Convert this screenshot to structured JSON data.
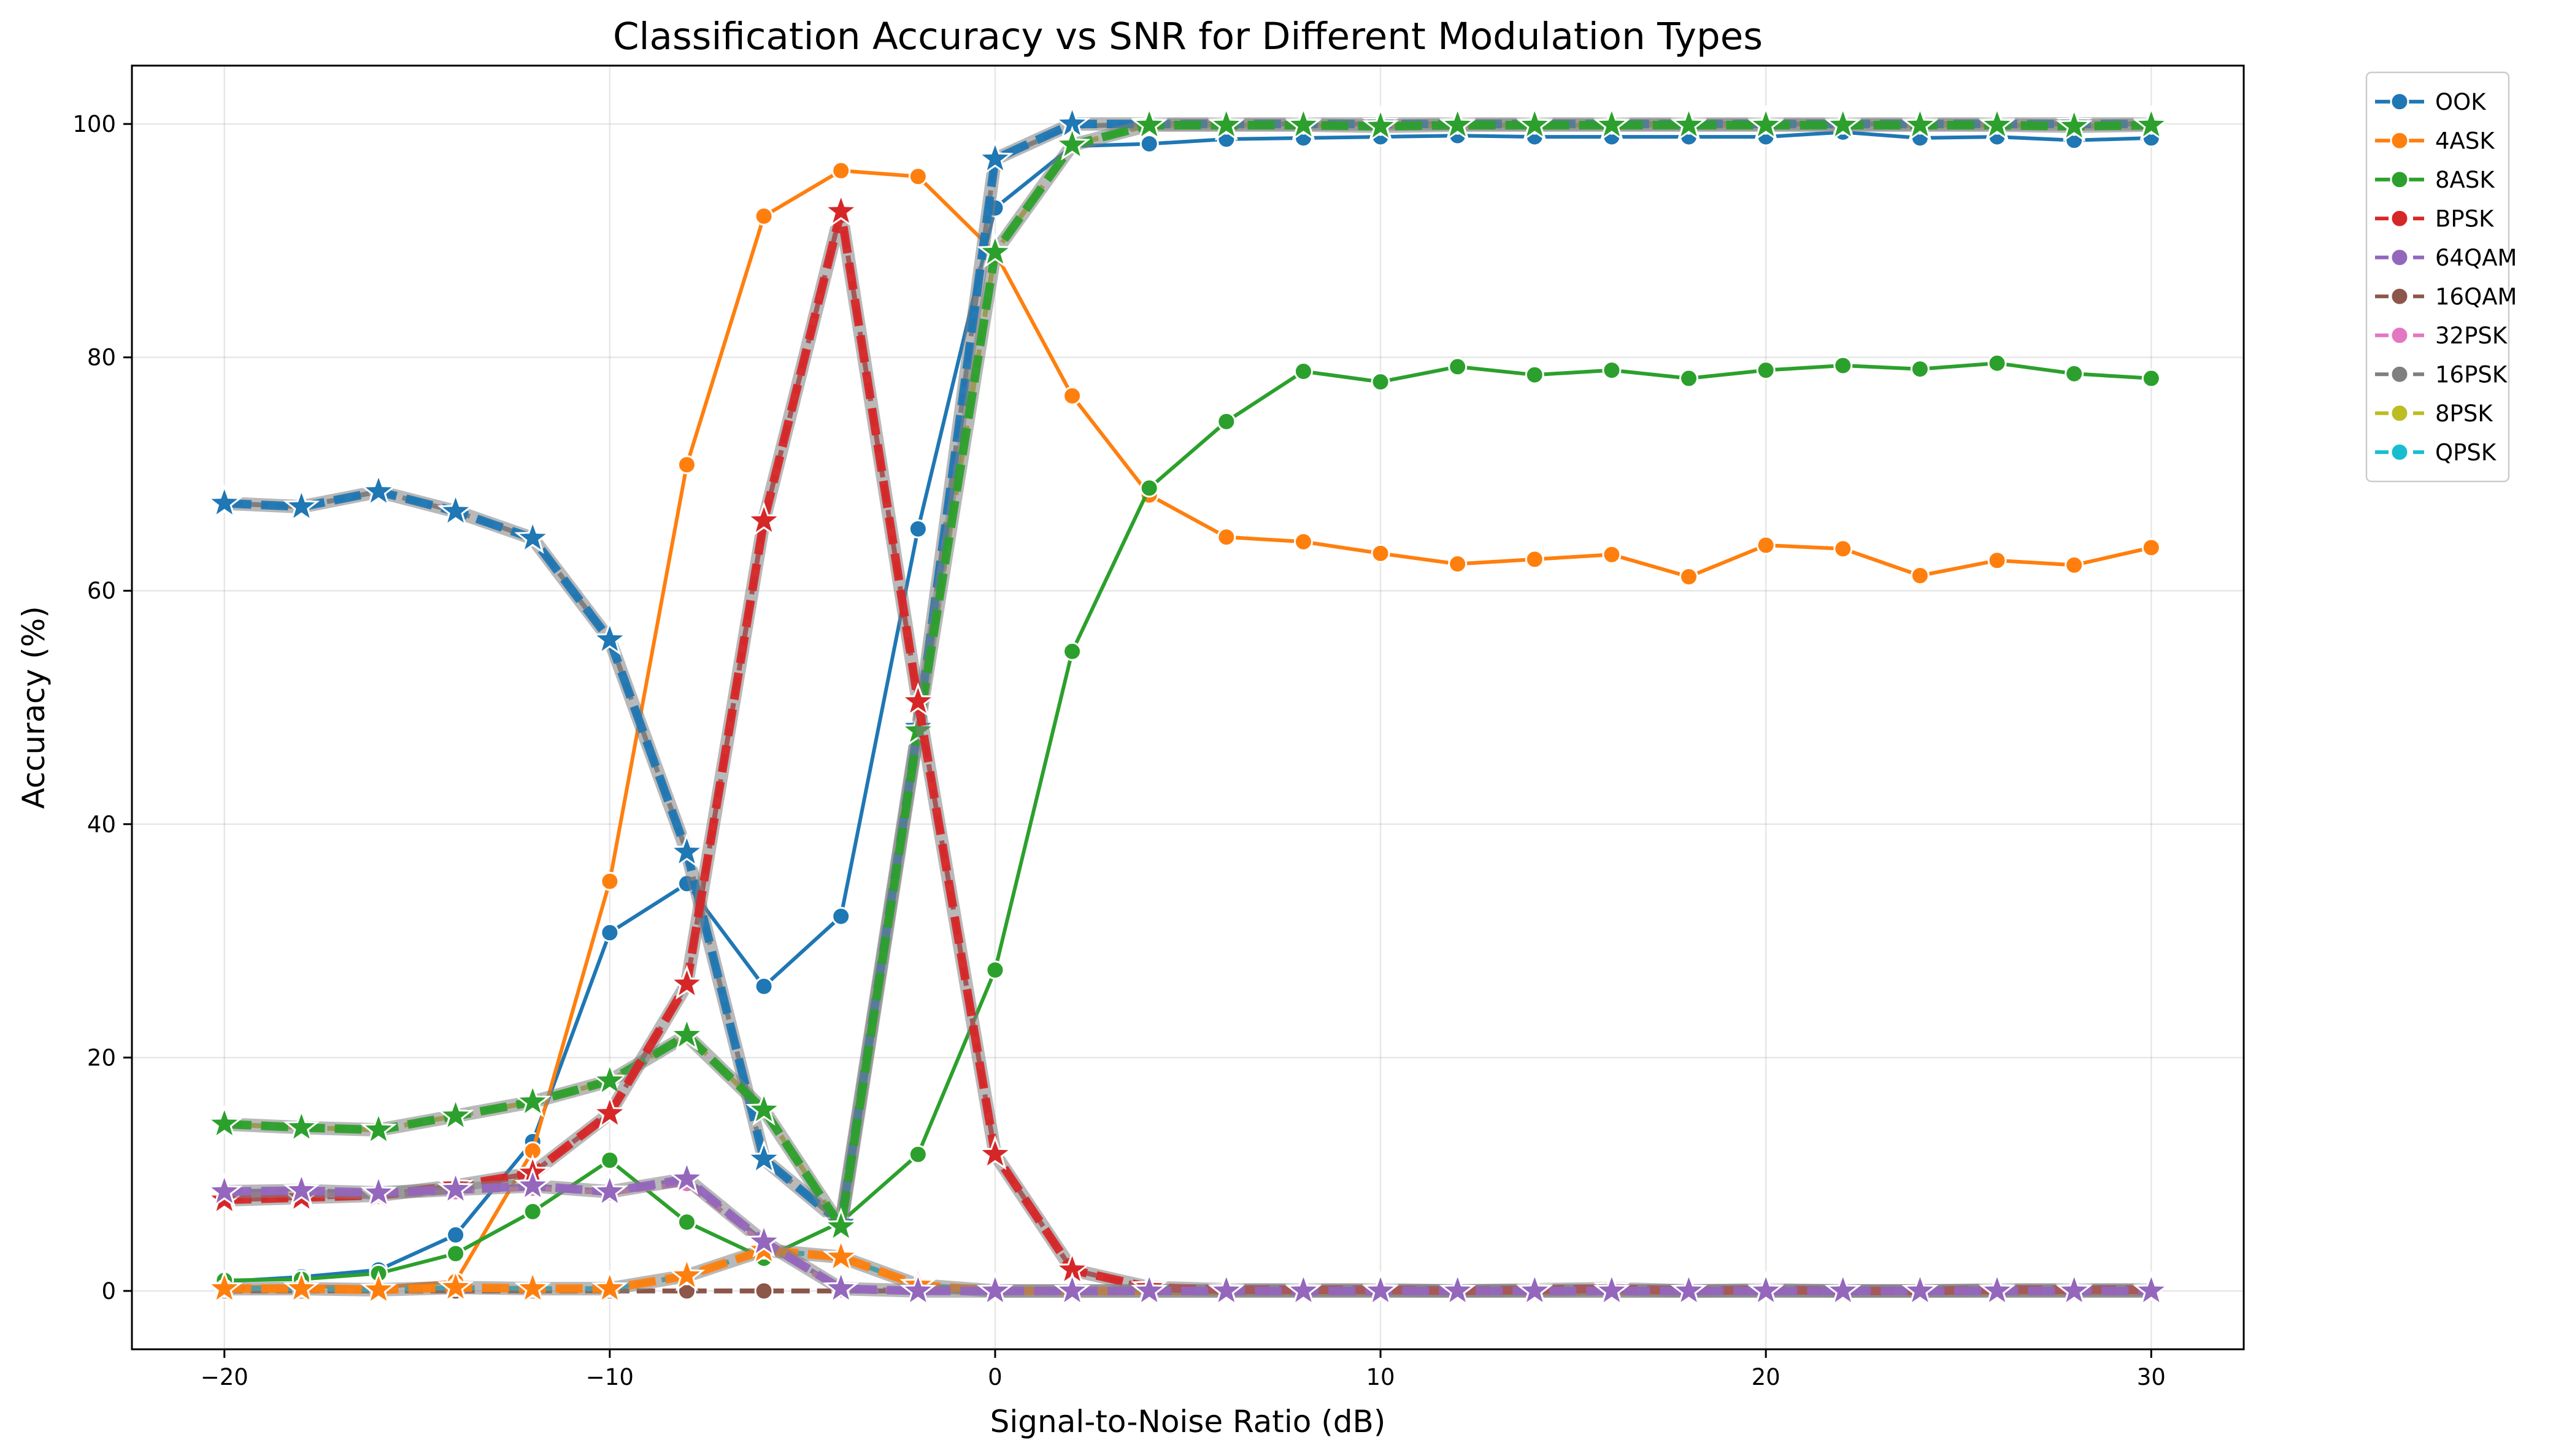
{
  "chart_data": {
    "type": "line",
    "title": "Classification Accuracy vs SNR for Different Modulation Types",
    "xlabel": "Signal-to-Noise Ratio (dB)",
    "ylabel": "Accuracy (%)",
    "xlim": [
      -22.4,
      32.4
    ],
    "ylim": [
      -5,
      105
    ],
    "xticks": [
      -20,
      -10,
      0,
      10,
      20,
      30
    ],
    "xtick_labels": [
      "−20",
      "−10",
      "0",
      "10",
      "20",
      "30"
    ],
    "yticks": [
      0,
      20,
      40,
      60,
      80,
      100
    ],
    "ytick_labels": [
      "0",
      "20",
      "40",
      "60",
      "80",
      "100"
    ],
    "grid": true,
    "legend_position": "outside-upper-right",
    "x": [
      -20,
      -18,
      -16,
      -14,
      -12,
      -10,
      -8,
      -6,
      -4,
      -2,
      0,
      2,
      4,
      6,
      8,
      10,
      12,
      14,
      16,
      18,
      20,
      22,
      24,
      26,
      28,
      30
    ],
    "series": [
      {
        "name": "OOK",
        "color": "#1f77b4",
        "style": "solid-circle",
        "values": [
          0.8,
          1.2,
          1.8,
          4.8,
          12.8,
          30.7,
          34.9,
          26.1,
          32.1,
          65.3,
          92.8,
          98.1,
          98.3,
          98.7,
          98.8,
          98.9,
          99.0,
          98.9,
          98.9,
          98.9,
          98.9,
          99.3,
          98.8,
          98.9,
          98.6,
          98.8
        ]
      },
      {
        "name": "4ASK",
        "color": "#ff7f0e",
        "style": "solid-circle",
        "values": [
          0.3,
          0.4,
          0.3,
          0.8,
          12.0,
          35.1,
          70.8,
          92.1,
          96.0,
          95.5,
          89.0,
          76.7,
          68.2,
          64.6,
          64.2,
          63.2,
          62.3,
          62.7,
          63.1,
          61.2,
          63.9,
          63.6,
          61.3,
          62.6,
          62.2,
          63.7
        ]
      },
      {
        "name": "8ASK",
        "color": "#2ca02c",
        "style": "solid-circle",
        "values": [
          0.9,
          1.0,
          1.5,
          3.2,
          6.8,
          11.2,
          5.9,
          2.8,
          5.9,
          11.7,
          27.5,
          54.8,
          68.8,
          74.5,
          78.8,
          77.9,
          79.2,
          78.5,
          78.9,
          78.2,
          78.9,
          79.3,
          79.0,
          79.5,
          78.6,
          78.2
        ]
      },
      {
        "name": "BPSK",
        "color": "#d62728",
        "style": "dashed-circle",
        "values": [
          7.8,
          8.0,
          8.2,
          9.0,
          10.1,
          15.2,
          26.3,
          66.0,
          92.5,
          50.5,
          11.7,
          1.8,
          0.3,
          0.1,
          0.1,
          0.1,
          0.0,
          0.1,
          0.2,
          0.0,
          0.1,
          0.0,
          0.0,
          0.1,
          0.1,
          0.1
        ]
      },
      {
        "name": "64QAM",
        "color": "#9467bd",
        "style": "dashed-circle",
        "values": [
          8.5,
          8.6,
          8.4,
          8.7,
          9.0,
          8.5,
          9.6,
          4.2,
          0.2,
          0.0,
          0.0,
          0.0,
          0.0,
          0.0,
          0.0,
          0.0,
          0.0,
          0.0,
          0.0,
          0.0,
          0.0,
          0.0,
          0.0,
          0.0,
          0.0,
          0.0
        ]
      },
      {
        "name": "16QAM",
        "color": "#8c564b",
        "style": "dashed-circle",
        "values": [
          0.0,
          0.0,
          0.0,
          0.0,
          0.0,
          0.0,
          0.0,
          0.0,
          0.0,
          0.0,
          0.0,
          0.0,
          0.0,
          0.0,
          0.0,
          0.0,
          0.0,
          0.0,
          0.0,
          0.0,
          0.0,
          0.0,
          0.0,
          0.0,
          0.0,
          0.0
        ]
      },
      {
        "name": "32PSK",
        "color": "#e377c2",
        "style": "dashed-circle",
        "values": [
          8.2,
          8.3,
          8.1,
          8.5,
          8.8,
          8.4,
          9.2,
          4.0,
          0.1,
          0.0,
          0.0,
          0.0,
          0.0,
          0.0,
          0.0,
          0.0,
          0.0,
          0.0,
          0.0,
          0.0,
          0.0,
          0.0,
          0.0,
          0.0,
          0.0,
          0.0
        ]
      },
      {
        "name": "16PSK",
        "color": "#7f7f7f",
        "style": "dashed-circle",
        "values": [
          67.5,
          67.2,
          68.5,
          66.8,
          64.5,
          55.8,
          37.6,
          11.3,
          5.8,
          48.3,
          97.0,
          99.8,
          100.0,
          100.0,
          100.0,
          100.0,
          100.0,
          100.0,
          100.0,
          100.0,
          100.0,
          100.0,
          100.0,
          100.0,
          100.0,
          100.0
        ]
      },
      {
        "name": "8PSK",
        "color": "#bcbd22",
        "style": "dashed-circle",
        "values": [
          14.3,
          14.0,
          13.8,
          15.0,
          16.2,
          18.0,
          21.9,
          15.5,
          5.5,
          48.0,
          89.0,
          98.2,
          99.9,
          99.9,
          99.9,
          99.8,
          99.9,
          99.9,
          99.9,
          99.9,
          99.9,
          99.9,
          99.9,
          99.9,
          99.8,
          99.9
        ]
      },
      {
        "name": "QPSK",
        "color": "#17becf",
        "style": "dashed-circle",
        "values": [
          0.2,
          0.2,
          0.1,
          0.3,
          0.2,
          0.2,
          1.3,
          3.5,
          2.9,
          0.5,
          0.0,
          0.0,
          0.0,
          0.0,
          0.0,
          0.0,
          0.0,
          0.0,
          0.0,
          0.0,
          0.0,
          0.0,
          0.0,
          0.0,
          0.0,
          0.0
        ]
      }
    ],
    "overlay_series": [
      {
        "color": "#1f77b4",
        "style": "thick-star",
        "values": [
          67.5,
          67.2,
          68.5,
          66.8,
          64.5,
          55.8,
          37.6,
          11.3,
          5.8,
          48.3,
          97.0,
          100.0,
          100.0,
          100.0,
          100.0,
          100.0,
          100.0,
          100.0,
          100.0,
          100.0,
          100.0,
          100.0,
          100.0,
          100.0,
          100.0,
          100.0
        ]
      },
      {
        "color": "#ff7f0e",
        "style": "thick-star",
        "values": [
          0.2,
          0.2,
          0.1,
          0.3,
          0.2,
          0.2,
          1.3,
          3.5,
          2.9,
          0.5,
          0.0,
          0.0,
          0.0,
          0.0,
          0.0,
          0.0,
          0.0,
          0.0,
          0.0,
          0.0,
          0.0,
          0.0,
          0.0,
          0.0,
          0.0,
          0.0
        ]
      },
      {
        "color": "#2ca02c",
        "style": "thick-star",
        "values": [
          14.3,
          14.0,
          13.8,
          15.0,
          16.2,
          18.0,
          21.9,
          15.5,
          5.5,
          48.0,
          89.0,
          98.2,
          99.9,
          99.9,
          99.9,
          99.8,
          99.9,
          99.9,
          99.9,
          99.9,
          99.9,
          99.9,
          99.9,
          99.9,
          99.8,
          99.9
        ]
      },
      {
        "color": "#d62728",
        "style": "thick-star",
        "values": [
          7.8,
          8.0,
          8.2,
          9.0,
          10.1,
          15.2,
          26.3,
          66.0,
          92.5,
          50.5,
          11.7,
          1.8,
          0.3,
          0.1,
          0.1,
          0.1,
          0.0,
          0.1,
          0.2,
          0.0,
          0.1,
          0.0,
          0.0,
          0.1,
          0.1,
          0.1
        ]
      },
      {
        "color": "#9467bd",
        "style": "thick-star",
        "values": [
          8.5,
          8.6,
          8.4,
          8.7,
          9.0,
          8.5,
          9.6,
          4.2,
          0.2,
          0.0,
          0.0,
          0.0,
          0.0,
          0.0,
          0.0,
          0.0,
          0.0,
          0.0,
          0.0,
          0.0,
          0.0,
          0.0,
          0.0,
          0.0,
          0.0,
          0.0
        ]
      }
    ]
  }
}
